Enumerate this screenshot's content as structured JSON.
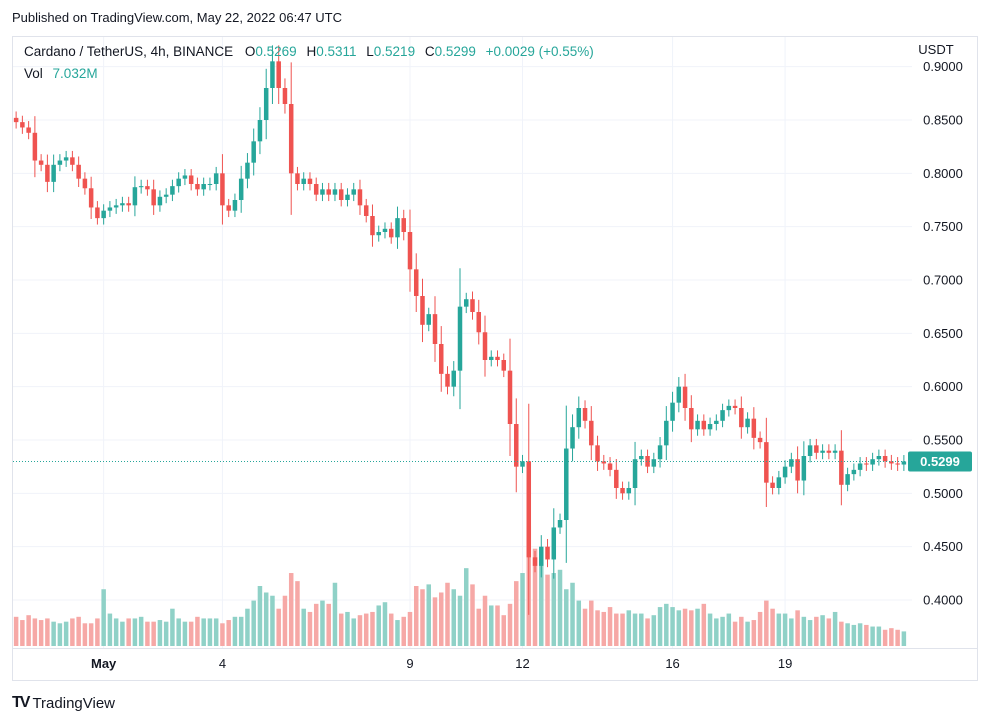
{
  "header": {
    "published": "Published on TradingView.com, May 22, 2022 06:47 UTC"
  },
  "legend": {
    "symbol": "Cardano / TetherUS, 4h, BINANCE",
    "o_label": "O",
    "o_value": "0.5269",
    "h_label": "H",
    "h_value": "0.5311",
    "l_label": "L",
    "l_value": "0.5219",
    "c_label": "C",
    "c_value": "0.5299",
    "change": "+0.0029 (+0.55%)",
    "vol_label": "Vol",
    "vol_value": "7.032M"
  },
  "footer": {
    "brand": "TradingView"
  },
  "colors": {
    "up": "#26a69a",
    "down": "#ef5350",
    "up_vol": "#8fd1c7",
    "down_vol": "#f6a8a6",
    "grid": "#f0f3fa",
    "price_tag": "#26a69a"
  },
  "chart_data": {
    "type": "candlestick",
    "pair": "ADA/USDT",
    "interval": "4h",
    "axis_unit": "USDT",
    "ylim": [
      0.355,
      0.925
    ],
    "yticks": [
      0.4,
      0.45,
      0.5,
      0.55,
      0.6,
      0.65,
      0.7,
      0.75,
      0.8,
      0.85,
      0.9
    ],
    "ytick_labels": [
      "0.4000",
      "0.4500",
      "0.5000",
      "0.5500",
      "0.6000",
      "0.6500",
      "0.7000",
      "0.7500",
      "0.8000",
      "0.8500",
      "0.9000"
    ],
    "xticks": [
      {
        "label": "May",
        "index": 14
      },
      {
        "label": "4",
        "index": 33
      },
      {
        "label": "9",
        "index": 63
      },
      {
        "label": "12",
        "index": 81
      },
      {
        "label": "16",
        "index": 105
      },
      {
        "label": "19",
        "index": 123
      }
    ],
    "last_price": 0.5299,
    "last_price_label": "0.5299",
    "closes": [
      0.848,
      0.843,
      0.838,
      0.812,
      0.808,
      0.792,
      0.808,
      0.812,
      0.815,
      0.808,
      0.795,
      0.786,
      0.768,
      0.758,
      0.765,
      0.768,
      0.77,
      0.772,
      0.77,
      0.787,
      0.788,
      0.785,
      0.77,
      0.778,
      0.78,
      0.788,
      0.795,
      0.798,
      0.79,
      0.785,
      0.79,
      0.79,
      0.8,
      0.77,
      0.765,
      0.775,
      0.795,
      0.81,
      0.83,
      0.85,
      0.88,
      0.905,
      0.88,
      0.865,
      0.8,
      0.79,
      0.795,
      0.79,
      0.78,
      0.785,
      0.78,
      0.785,
      0.775,
      0.78,
      0.785,
      0.77,
      0.76,
      0.742,
      0.745,
      0.748,
      0.74,
      0.758,
      0.745,
      0.71,
      0.685,
      0.658,
      0.668,
      0.64,
      0.612,
      0.6,
      0.615,
      0.675,
      0.682,
      0.67,
      0.651,
      0.625,
      0.628,
      0.625,
      0.615,
      0.565,
      0.525,
      0.53,
      0.44,
      0.432,
      0.45,
      0.438,
      0.468,
      0.475,
      0.542,
      0.562,
      0.58,
      0.568,
      0.545,
      0.53,
      0.528,
      0.522,
      0.505,
      0.5,
      0.505,
      0.532,
      0.535,
      0.525,
      0.532,
      0.545,
      0.568,
      0.585,
      0.6,
      0.58,
      0.56,
      0.568,
      0.56,
      0.565,
      0.568,
      0.578,
      0.582,
      0.58,
      0.562,
      0.57,
      0.552,
      0.548,
      0.51,
      0.505,
      0.515,
      0.525,
      0.532,
      0.512,
      0.535,
      0.545,
      0.538,
      0.54,
      0.538,
      0.54,
      0.508,
      0.518,
      0.522,
      0.528,
      0.527,
      0.532,
      0.535,
      0.53,
      0.528,
      0.527,
      0.5299
    ],
    "volumes": [
      18,
      16,
      19,
      17,
      16,
      17,
      15,
      14,
      15,
      17,
      18,
      14,
      14,
      17,
      35,
      20,
      17,
      15,
      17,
      17,
      18,
      15,
      15,
      16,
      15,
      23,
      17,
      15,
      15,
      18,
      17,
      17,
      17,
      14,
      16,
      18,
      18,
      23,
      28,
      37,
      33,
      31,
      23,
      31,
      45,
      40,
      23,
      21,
      26,
      28,
      26,
      39,
      20,
      21,
      17,
      19,
      20,
      21,
      25,
      27,
      20,
      16,
      18,
      21,
      37,
      35,
      38,
      30,
      33,
      39,
      35,
      31,
      48,
      38,
      23,
      31,
      25,
      25,
      19,
      26,
      40,
      45,
      74,
      60,
      52,
      44,
      45,
      47,
      35,
      39,
      28,
      23,
      28,
      22,
      21,
      24,
      20,
      20,
      22,
      20,
      20,
      17,
      19,
      24,
      26,
      24,
      22,
      23,
      22,
      23,
      26,
      20,
      17,
      18,
      20,
      15,
      18,
      15,
      16,
      21,
      28,
      23,
      20,
      20,
      17,
      22,
      18,
      16,
      18,
      19,
      17,
      21,
      15,
      14,
      13,
      14,
      13,
      12,
      12,
      10,
      11,
      10,
      9
    ]
  }
}
